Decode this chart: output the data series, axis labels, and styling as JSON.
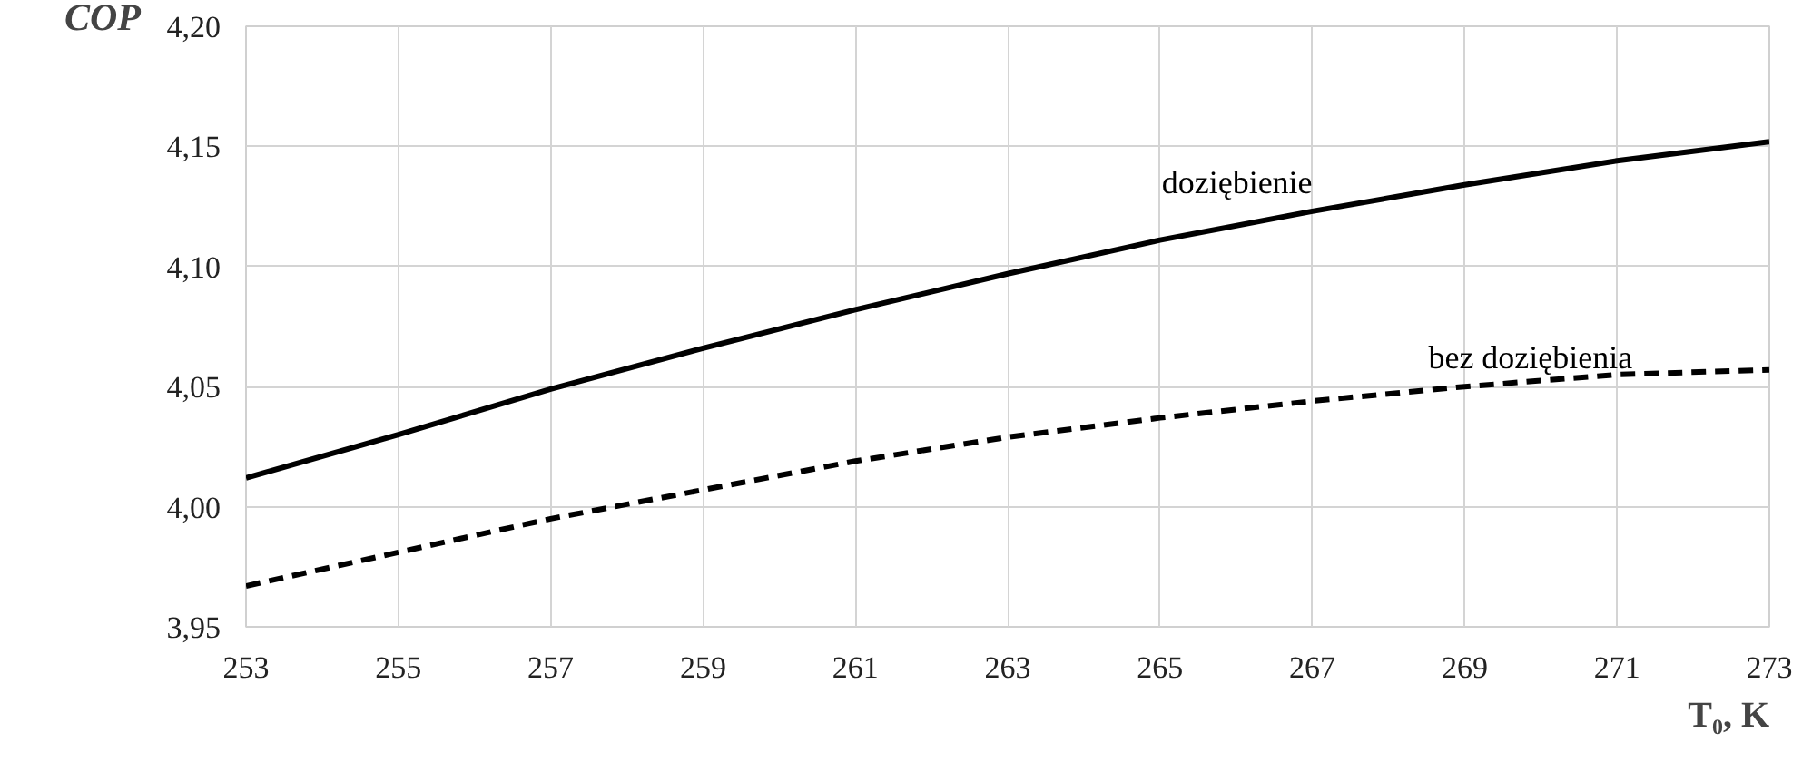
{
  "chart_data": {
    "type": "line",
    "xlabel": "T₀, K",
    "ylabel": "COP",
    "x": [
      253,
      255,
      257,
      259,
      261,
      263,
      265,
      267,
      269,
      271,
      273
    ],
    "series": [
      {
        "name": "doziębienie",
        "color": "#000000",
        "line_style": "solid",
        "values": [
          4.012,
          4.03,
          4.049,
          4.066,
          4.082,
          4.097,
          4.111,
          4.123,
          4.134,
          4.144,
          4.152
        ]
      },
      {
        "name": "bez doziębienia",
        "color": "#000000",
        "line_style": "dashed",
        "values": [
          3.967,
          3.981,
          3.995,
          4.007,
          4.019,
          4.029,
          4.037,
          4.044,
          4.05,
          4.055,
          4.057
        ]
      }
    ],
    "xlim": [
      253,
      273
    ],
    "xticks": [
      253,
      255,
      257,
      259,
      261,
      263,
      265,
      267,
      269,
      271,
      273
    ],
    "ylim": [
      3.95,
      4.2
    ],
    "yticks": [
      {
        "value": 3.95,
        "label": "3,95"
      },
      {
        "value": 4.0,
        "label": "4,00"
      },
      {
        "value": 4.05,
        "label": "4,05"
      },
      {
        "value": 4.1,
        "label": "4,10"
      },
      {
        "value": 4.15,
        "label": "4,15"
      },
      {
        "value": 4.2,
        "label": "4,20"
      }
    ],
    "grid": true,
    "legend": false,
    "marker": "none"
  }
}
